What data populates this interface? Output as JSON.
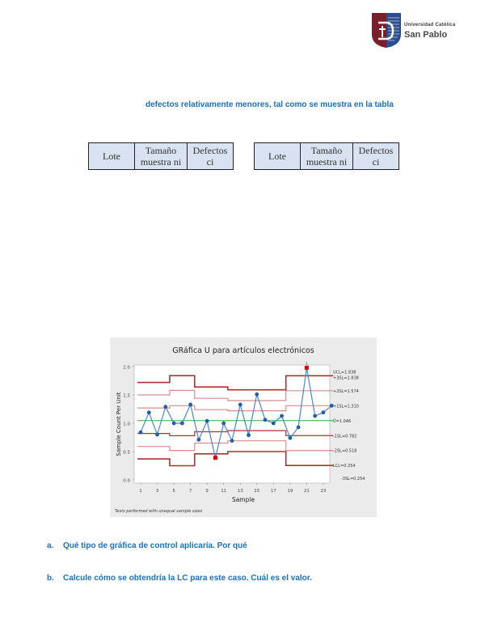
{
  "header": {
    "logo_line1": "Universidad Católica",
    "logo_line2": "San Pablo",
    "logo_colors": {
      "maroon": "#7a1f2a",
      "blue": "#2a4d8f"
    }
  },
  "intro_text": "defectos relativamente menores, tal como se muestra en la tabla",
  "tables": [
    {
      "headers": [
        "Lote",
        "Tamaño muestra ni",
        "Defectos ci"
      ]
    },
    {
      "headers": [
        "Lote",
        "Tamaño muestra ni",
        "Defectos ci"
      ]
    }
  ],
  "questions": [
    {
      "label": "a.",
      "text": "Qué tipo de gráfica de control aplicaría. Por qué"
    },
    {
      "label": "b.",
      "text": "Calcule cómo se obtendría la LC para este caso. Cuál es el valor."
    }
  ],
  "chart_data": {
    "type": "line",
    "title": "GRáfica U para artículos electrónicos",
    "xlabel": "Sample",
    "ylabel": "Sample Count Per Unit",
    "footnote": "Tests performed with unequal sample sizes",
    "xlim": [
      1,
      24
    ],
    "ylim": [
      0.0,
      2.0
    ],
    "x_ticks": [
      1,
      3,
      5,
      7,
      9,
      11,
      13,
      15,
      17,
      19,
      21,
      23
    ],
    "y_ticks": [
      "0.0",
      "0.5",
      "1.0",
      "1.5",
      "2.0"
    ],
    "x": [
      1,
      2,
      3,
      4,
      5,
      6,
      7,
      8,
      9,
      10,
      11,
      12,
      13,
      14,
      15,
      16,
      17,
      18,
      19,
      20,
      21,
      22,
      23,
      24
    ],
    "series": [
      {
        "name": "U",
        "color": "#1f5fa8",
        "values": [
          0.84,
          1.19,
          0.8,
          1.29,
          1.0,
          1.0,
          1.33,
          0.71,
          1.04,
          0.39,
          1.0,
          0.69,
          1.33,
          0.79,
          1.51,
          1.06,
          1.0,
          1.13,
          0.74,
          0.93,
          1.98,
          1.13,
          1.19,
          1.31
        ]
      }
    ],
    "out_of_control_points": [
      {
        "sample": 10,
        "value": 0.39,
        "color": "#e00000"
      },
      {
        "sample": 21,
        "value": 1.98,
        "color": "#e00000",
        "test_label": "1"
      }
    ],
    "center_line": {
      "label": "Ū = 1.046",
      "value": 1.046,
      "color": "#3aa83a"
    },
    "limit_segments": [
      {
        "from": 1,
        "to": 4.5,
        "ucl": 1.72,
        "p2": 1.5,
        "p1": 1.27,
        "m1": 0.82,
        "m2": 0.59,
        "lcl": 0.37
      },
      {
        "from": 4.5,
        "to": 7.5,
        "ucl": 1.84,
        "p2": 1.58,
        "p1": 1.31,
        "m1": 0.78,
        "m2": 0.52,
        "lcl": 0.25
      },
      {
        "from": 7.5,
        "to": 11.5,
        "ucl": 1.64,
        "p2": 1.44,
        "p1": 1.24,
        "m1": 0.85,
        "m2": 0.65,
        "lcl": 0.46
      },
      {
        "from": 11.5,
        "to": 18.5,
        "ucl": 1.59,
        "p2": 1.4,
        "p1": 1.22,
        "m1": 0.87,
        "m2": 0.69,
        "lcl": 0.5
      },
      {
        "from": 18.5,
        "to": 24,
        "ucl": 1.838,
        "p2": 1.574,
        "p1": 1.31,
        "m1": 0.782,
        "m2": 0.518,
        "lcl": 0.254
      }
    ],
    "right_labels": [
      "UCL=1.838",
      "+3SL=1.838",
      "+2SL=1.574",
      "+1SL=1.310",
      "Ū=1.046",
      "-1SL=0.782",
      "-2SL=0.518",
      "LCL=0.254",
      "-3SL=0.254"
    ],
    "limit_color": "#b03030",
    "grid": false
  }
}
